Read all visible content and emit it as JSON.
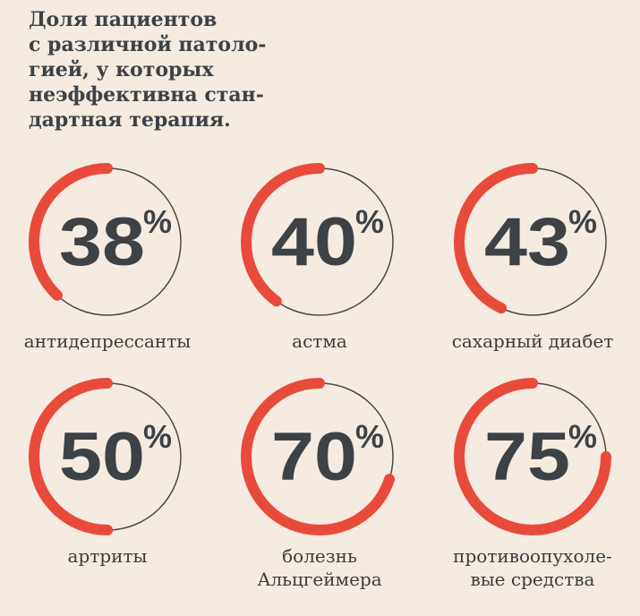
{
  "title_lines": [
    "Доля пациентов",
    "с различной патоло-",
    "гией, у которых",
    "неэффективна стан-",
    "дартная терапия."
  ],
  "colors": {
    "arc": "#e84b3c",
    "ring": "#4a4a4a",
    "text": "#3d4246",
    "background": "#f5ebe1"
  },
  "chart_data": {
    "type": "donut",
    "title": "Доля пациентов с различной патологией, у которых неэффективна стандартная терапия.",
    "unit": "%",
    "items": [
      {
        "value": 38,
        "display": "38",
        "label": "антидепрессанты"
      },
      {
        "value": 40,
        "display": "40",
        "label": "астма"
      },
      {
        "value": 43,
        "display": "43",
        "label": "сахарный диабет"
      },
      {
        "value": 50,
        "display": "50",
        "label": "артриты"
      },
      {
        "value": 70,
        "display": "70",
        "label": "болезнь\nАльцгеймера"
      },
      {
        "value": 75,
        "display": "75",
        "label": "противоопухоле-\nвые средства"
      }
    ]
  }
}
